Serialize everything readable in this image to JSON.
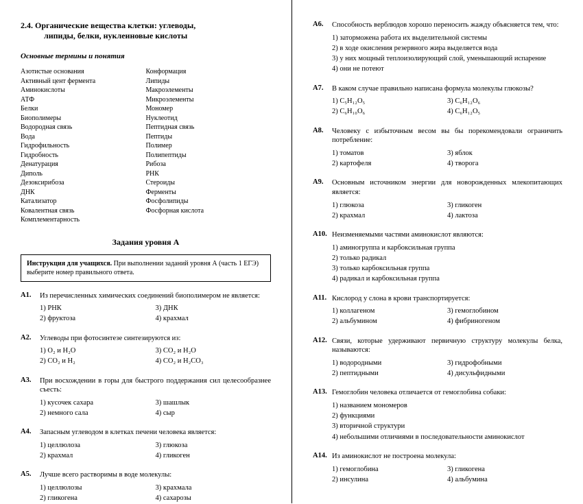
{
  "left": {
    "title_line1": "2.4. Органические вещества клетки: углеводы,",
    "title_line2": "липиды, белки, нуклеиновые кислоты",
    "subtitle": "Основные термины и понятия",
    "terms_col1": [
      "Азотистые основания",
      "Активный цент фермента",
      "Аминокислоты",
      "АТФ",
      "Белки",
      "Биополимеры",
      "Водородная связь",
      "Вода",
      "Гидрофильность",
      "Гидробность",
      "Денатурация",
      "Диполь",
      "Дезоксирибоза",
      "ДНК",
      "Катализатор",
      "Ковалентная связь",
      "Комплементарность"
    ],
    "terms_col2": [
      "Конформация",
      "Липиды",
      "Макроэлементы",
      "Микроэлементы",
      "Мономер",
      "Нуклеотид",
      "Пептидная связь",
      "Пептиды",
      "Полимер",
      "Полипептиды",
      "Рибоза",
      "РНК",
      "Стероиды",
      "Ферменты",
      "Фосфолипиды",
      "Фосфорная кислота"
    ],
    "tasks_title": "Задания уровня А",
    "instruction_bold": "Инструкция для учащихся.",
    "instruction_text": " При выполнении заданий уровня А (часть 1 ЕГЭ) выберите номер правильного ответа.",
    "q": [
      {
        "n": "A1.",
        "t": "Из перечисленных химических соединений биополимером не является:",
        "o": [
          [
            "1) РНК",
            "2) фруктоза"
          ],
          [
            "3) ДНК",
            "4) крахмал"
          ]
        ]
      },
      {
        "n": "A2.",
        "t": "Углеводы при фотосинтезе синтезируются из:",
        "o": [
          [
            "1) O₂ и H₂O",
            "2) CO₂ и H₂"
          ],
          [
            "3) CO₂ и H₂O",
            "4) CO₂ и H₂CO₃"
          ]
        ]
      },
      {
        "n": "A3.",
        "t": "При восхождении в горы для быстрого поддержания сил целесообразнее съесть:",
        "o": [
          [
            "1) кусочек сахара",
            "2) немного сала"
          ],
          [
            "3) шашлык",
            "4) сыр"
          ]
        ]
      },
      {
        "n": "A4.",
        "t": "Запасным углеводом в клетках печени человека является:",
        "o": [
          [
            "1) целлюлоза",
            "2) крахмал"
          ],
          [
            "3) глюкоза",
            "4) гликоген"
          ]
        ]
      },
      {
        "n": "A5.",
        "t": "Лучше всего растворимы в воде молекулы:",
        "o": [
          [
            "1) целлюлозы",
            "2) гликогена"
          ],
          [
            "3) крахмала",
            "4) сахарозы"
          ]
        ]
      }
    ]
  },
  "right": {
    "q": [
      {
        "n": "A6.",
        "t": "Способность верблюдов хорошо переносить жажду объясняется тем, что:",
        "list": [
          "1) заторможена работа их выделительной системы",
          "2) в ходе окисления резервного жира выделяется вода",
          "3) у них мощный теплоизолирующий слой, уменьшающий испарение",
          "4) они не потеют"
        ]
      },
      {
        "n": "A7.",
        "t": "В каком случае правильно написана формула молекулы глюкозы?",
        "o": [
          [
            "1) C₅H₁₂O₅",
            "2) C₆H₁₀O₆"
          ],
          [
            "3) C₆H₁₂O₆",
            "4) C₆H₁₂O₅"
          ]
        ]
      },
      {
        "n": "A8.",
        "t": "Человеку с избыточным весом вы бы порекомендовали ограничить потребление:",
        "o": [
          [
            "1) томатов",
            "2) картофеля"
          ],
          [
            "3) яблок",
            "4) творога"
          ]
        ]
      },
      {
        "n": "A9.",
        "t": "Основным источником энергии для новорожденных млекопитающих является:",
        "o": [
          [
            "1) глюкоза",
            "2) крахмал"
          ],
          [
            "3) гликоген",
            "4) лактоза"
          ]
        ]
      },
      {
        "n": "A10.",
        "t": "Неизменяемыми частями аминокислот являются:",
        "list": [
          "1) аминогруппа и карбоксильная группа",
          "2) только радикал",
          "3) только карбоксильная группа",
          "4) радикал и карбоксильная группа"
        ]
      },
      {
        "n": "A11.",
        "t": "Кислород  у слона в крови транспортируется:",
        "o": [
          [
            "1) коллагеном",
            "2) альбумином"
          ],
          [
            "3) гемоглобином",
            "4) фибриногеном"
          ]
        ]
      },
      {
        "n": "A12.",
        "t": "Связи, которые удерживают первичную структуру молекулы белка, называются:",
        "o": [
          [
            "1) водородными",
            "2) пептидными"
          ],
          [
            "3) гидрофобными",
            "4) дисульфидными"
          ]
        ]
      },
      {
        "n": "A13.",
        "t": "Гемоглобин человека отличается от гемоглобина собаки:",
        "list": [
          "1) названием мономеров",
          "2) функциями",
          "3) вторичной структури",
          "4) небольшими отличиями в последовательности  аминокислот"
        ]
      },
      {
        "n": "A14.",
        "t": "Из аминокислот не построена молекула:",
        "o": [
          [
            "1) гемоглобина",
            "2) инсулина"
          ],
          [
            "3) гликогена",
            "4) альбумина"
          ]
        ]
      }
    ]
  }
}
